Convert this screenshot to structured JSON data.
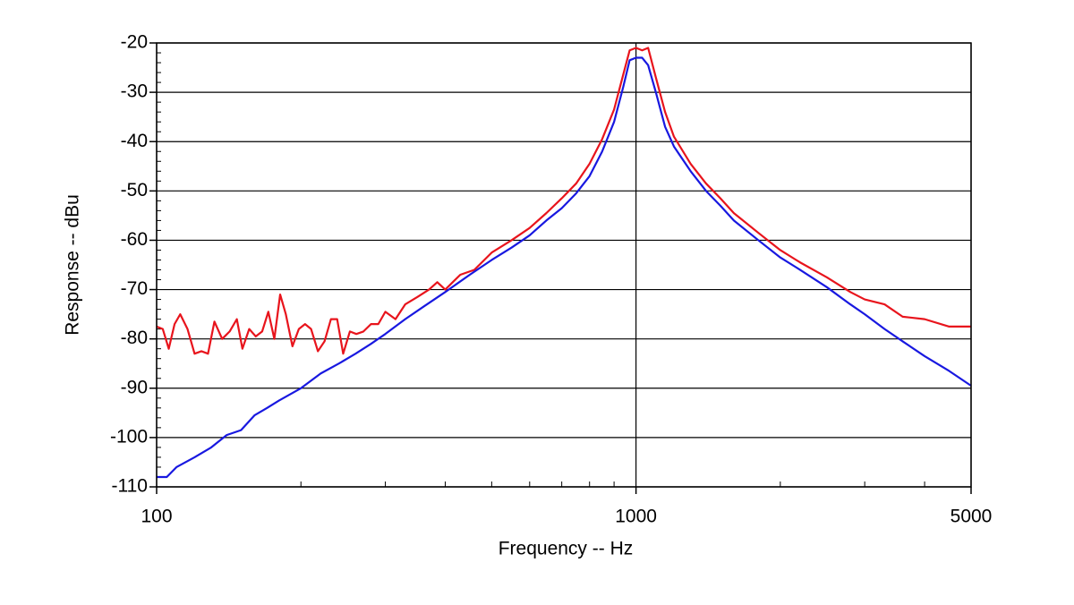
{
  "chart_data": {
    "type": "line",
    "x_label": "Frequency -- Hz",
    "y_label": "Response -- dBu",
    "xscale": "log",
    "xlim": [
      100,
      5000
    ],
    "ylim": [
      -110,
      -20
    ],
    "xticks": [
      100,
      1000,
      5000
    ],
    "yticks": [
      -110,
      -100,
      -90,
      -80,
      -70,
      -60,
      -50,
      -40,
      -30,
      -20
    ],
    "xminorticks": [
      200,
      300,
      400,
      500,
      600,
      700,
      800,
      900,
      2000,
      3000,
      4000
    ],
    "yminorticks": [
      -108,
      -106,
      -104,
      -102,
      -98,
      -96,
      -94,
      -92,
      -88,
      -86,
      -84,
      -82,
      -78,
      -76,
      -74,
      -72,
      -68,
      -66,
      -64,
      -62,
      -58,
      -56,
      -54,
      -52,
      -48,
      -46,
      -44,
      -42,
      -38,
      -36,
      -34,
      -32,
      -28,
      -26,
      -24,
      -22
    ],
    "grid": true,
    "series": [
      {
        "color": "#e8141c",
        "x": [
          100,
          103,
          106,
          109,
          112,
          116,
          120,
          124,
          128,
          132,
          137,
          142,
          147,
          151,
          156,
          161,
          166,
          171,
          176,
          181,
          186,
          192,
          198,
          204,
          210,
          217,
          224,
          231,
          238,
          245,
          253,
          261,
          270,
          280,
          290,
          300,
          315,
          330,
          350,
          370,
          385,
          400,
          430,
          460,
          500,
          550,
          600,
          650,
          700,
          750,
          800,
          850,
          900,
          940,
          970,
          1000,
          1030,
          1060,
          1100,
          1150,
          1200,
          1300,
          1400,
          1500,
          1600,
          1800,
          2000,
          2200,
          2500,
          2800,
          3000,
          3300,
          3600,
          4000,
          4500,
          5000
        ],
        "values": [
          -77.5,
          -78,
          -82,
          -77,
          -75,
          -78,
          -83,
          -82.5,
          -83,
          -76.5,
          -80,
          -78.5,
          -76,
          -82,
          -78,
          -79.5,
          -78.5,
          -74.5,
          -80,
          -71,
          -75,
          -81.5,
          -78,
          -77,
          -78,
          -82.5,
          -80.5,
          -76,
          -76,
          -83,
          -78.5,
          -79,
          -78.5,
          -77,
          -77,
          -74.5,
          -76,
          -73,
          -71.5,
          -70,
          -68.5,
          -70,
          -67,
          -66,
          -62.5,
          -60,
          -57.5,
          -54.5,
          -51.5,
          -48.5,
          -44.5,
          -39.5,
          -33.5,
          -26.5,
          -21.5,
          -21,
          -21.5,
          -21,
          -27,
          -34,
          -39,
          -44.5,
          -48.5,
          -51.5,
          -54.5,
          -58.5,
          -62,
          -64.5,
          -67.5,
          -70.5,
          -72,
          -73,
          -75.5,
          -76,
          -77.5,
          -77.5
        ]
      },
      {
        "color": "#1818e0",
        "x": [
          100,
          105,
          110,
          120,
          130,
          140,
          150,
          160,
          170,
          180,
          200,
          220,
          240,
          260,
          280,
          300,
          330,
          360,
          400,
          450,
          500,
          550,
          600,
          650,
          700,
          750,
          800,
          850,
          900,
          940,
          970,
          1000,
          1030,
          1060,
          1100,
          1150,
          1200,
          1300,
          1400,
          1500,
          1600,
          1800,
          2000,
          2200,
          2500,
          2800,
          3000,
          3300,
          3600,
          4000,
          4500,
          5000
        ],
        "values": [
          -108,
          -108,
          -106,
          -104,
          -102,
          -99.5,
          -98.5,
          -95.5,
          -94,
          -92.5,
          -90,
          -87,
          -85,
          -83,
          -81,
          -79,
          -76,
          -73.5,
          -70.5,
          -67,
          -64,
          -61.5,
          -59,
          -56,
          -53.5,
          -50.5,
          -47,
          -42,
          -36,
          -29,
          -23.5,
          -23,
          -23,
          -24.5,
          -30,
          -37,
          -41,
          -46,
          -50,
          -53,
          -56,
          -60,
          -63.5,
          -66,
          -69.5,
          -73,
          -75,
          -78,
          -80.5,
          -83.5,
          -86.5,
          -89.5
        ]
      }
    ]
  }
}
